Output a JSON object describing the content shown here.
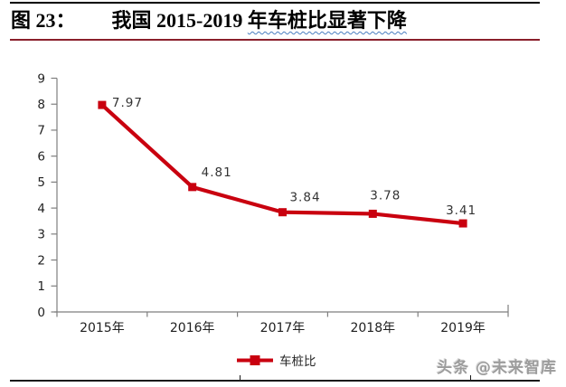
{
  "title": {
    "figure_label": "图 23：",
    "text_plain": "我国 2015-2019 ",
    "text_wavy": "年车桩比显著下降"
  },
  "chart_data": {
    "type": "line",
    "categories": [
      "2015年",
      "2016年",
      "2017年",
      "2018年",
      "2019年"
    ],
    "series": [
      {
        "name": "车桩比",
        "values": [
          7.97,
          4.81,
          3.84,
          3.78,
          3.41
        ]
      }
    ],
    "data_labels": [
      "7.97",
      "4.81",
      "3.84",
      "3.78",
      "3.41"
    ],
    "ylim": [
      0,
      9
    ],
    "ytick_step": 1,
    "grid": false,
    "legend_position": "bottom",
    "marker": "square",
    "line_color": "#C9000F",
    "divider_color": "#8A1F2B",
    "axis_color": "#7F7F7F",
    "tick_label_color": "#1f1f1f",
    "data_label_color": "#333333"
  },
  "watermark": {
    "text": "头条 @未来智库"
  }
}
